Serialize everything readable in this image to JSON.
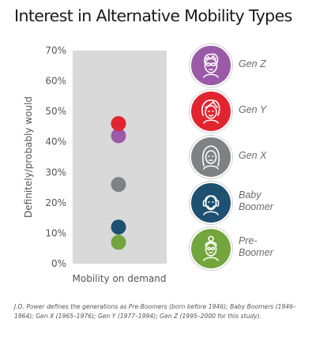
{
  "title": "Interest in Alternative Mobility Types",
  "chart_data": {
    "type": "scatter",
    "title": "Interest in Alternative Mobility Types",
    "ylabel": "Definitely/probably would",
    "xlabel": "Mobility on demand",
    "ylim": [
      0,
      70
    ],
    "yticks": [
      "0%",
      "10%",
      "20%",
      "30%",
      "40%",
      "50%",
      "60%",
      "70%"
    ],
    "grid": false,
    "series": [
      {
        "name": "Gen Z",
        "values": [
          42
        ],
        "color": "#9b5aa8"
      },
      {
        "name": "Gen Y",
        "values": [
          46
        ],
        "color": "#e12530"
      },
      {
        "name": "Gen X",
        "values": [
          26
        ],
        "color": "#7f8184"
      },
      {
        "name": "Baby Boomer",
        "values": [
          12
        ],
        "color": "#1d5071"
      },
      {
        "name": "Pre-Boomer",
        "values": [
          7
        ],
        "color": "#72a63c"
      }
    ]
  },
  "legend": [
    {
      "label": "Gen Z",
      "color": "#9b5aa8",
      "icon": "gen-z-avatar-icon"
    },
    {
      "label": "Gen Y",
      "color": "#e12530",
      "icon": "gen-y-avatar-icon"
    },
    {
      "label": "Gen X",
      "color": "#7f8184",
      "icon": "gen-x-avatar-icon"
    },
    {
      "label": "Baby Boomer",
      "line1": "Baby",
      "line2": "Boomer",
      "color": "#1d5071",
      "icon": "baby-boomer-avatar-icon"
    },
    {
      "label": "Pre-Boomer",
      "line1": "Pre-",
      "line2": "Boomer",
      "color": "#72a63c",
      "icon": "pre-boomer-avatar-icon"
    }
  ],
  "footnote": "J.D. Power defines the generations as Pre-Boomers (born before 1946); Baby Boomers (1946–1964); Gen X (1965–1976); Gen Y (1977–1994); Gen Z (1995–2000 for this study)."
}
